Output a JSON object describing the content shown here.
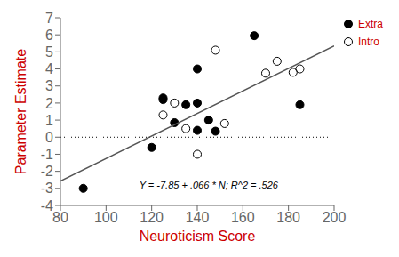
{
  "chart_data": {
    "type": "scatter",
    "xlabel": "Neuroticism Score",
    "ylabel": "Parameter Estimate",
    "xlabel_color": "#cc0000",
    "ylabel_color": "#cc0000",
    "xlim": [
      80,
      200
    ],
    "ylim": [
      -4,
      7
    ],
    "xticks": [
      80,
      100,
      120,
      140,
      160,
      180,
      200
    ],
    "yticks": [
      -4,
      -3,
      -2,
      -1,
      0,
      1,
      2,
      3,
      4,
      5,
      6,
      7
    ],
    "grid": false,
    "legend": "right",
    "legend_color": "#cc0000",
    "series": [
      {
        "name": "Extra",
        "type": "scatter",
        "marker": "filled",
        "color": "#000000",
        "x": [
          90,
          120,
          125,
          125,
          130,
          135,
          140,
          140,
          140,
          145,
          148,
          165,
          185
        ],
        "values": [
          -3.0,
          -0.6,
          2.2,
          2.3,
          0.85,
          1.9,
          2.0,
          0.4,
          4.0,
          1.0,
          0.35,
          5.95,
          1.9
        ]
      },
      {
        "name": "Intro",
        "type": "scatter",
        "marker": "open",
        "color": "#000000",
        "x": [
          125,
          130,
          135,
          140,
          148,
          152,
          170,
          175,
          182,
          185
        ],
        "values": [
          1.3,
          2.0,
          0.5,
          -1.0,
          5.1,
          0.8,
          3.75,
          4.45,
          3.8,
          4.0
        ]
      },
      {
        "type": "line",
        "color": "#555555",
        "x": [
          80,
          200
        ],
        "values": [
          -2.57,
          5.35
        ]
      }
    ],
    "reference_lines": [
      {
        "y": 0,
        "line_style": "dotted",
        "color": "#000000"
      }
    ],
    "annotations": [
      {
        "text": "Y = -7.85 + .066 * N; R^2 = .526",
        "x": 145,
        "y": -2.8
      }
    ]
  }
}
